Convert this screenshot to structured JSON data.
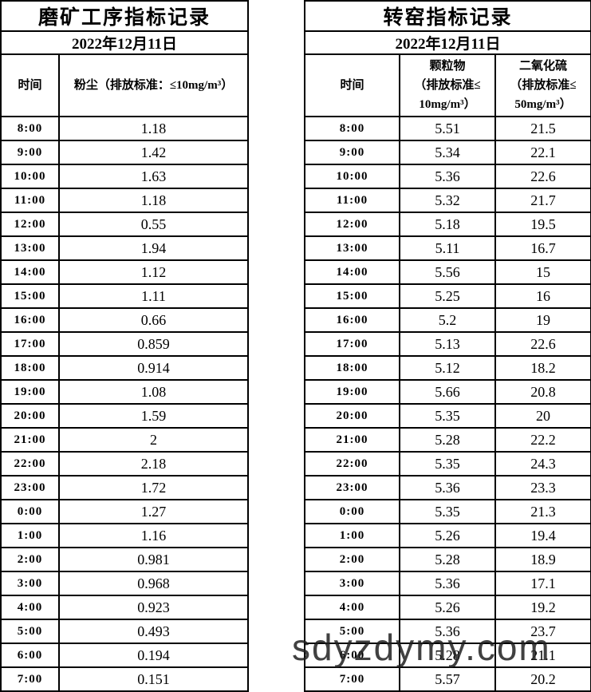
{
  "watermark": {
    "text": "sdyzdymy.com"
  },
  "grinding_table": {
    "title": "磨矿工序指标记录",
    "date": "2022年12月11日",
    "columns": {
      "time": "时间",
      "dust": "粉尘（排放标准：≤10mg/m³）"
    },
    "rows": [
      {
        "time": "8:00",
        "value": "1.18"
      },
      {
        "time": "9:00",
        "value": "1.42"
      },
      {
        "time": "10:00",
        "value": "1.63"
      },
      {
        "time": "11:00",
        "value": "1.18"
      },
      {
        "time": "12:00",
        "value": "0.55"
      },
      {
        "time": "13:00",
        "value": "1.94"
      },
      {
        "time": "14:00",
        "value": "1.12"
      },
      {
        "time": "15:00",
        "value": "1.11"
      },
      {
        "time": "16:00",
        "value": "0.66"
      },
      {
        "time": "17:00",
        "value": "0.859"
      },
      {
        "time": "18:00",
        "value": "0.914"
      },
      {
        "time": "19:00",
        "value": "1.08"
      },
      {
        "time": "20:00",
        "value": "1.59"
      },
      {
        "time": "21:00",
        "value": "2"
      },
      {
        "time": "22:00",
        "value": "2.18"
      },
      {
        "time": "23:00",
        "value": "1.72"
      },
      {
        "time": "0:00",
        "value": "1.27"
      },
      {
        "time": "1:00",
        "value": "1.16"
      },
      {
        "time": "2:00",
        "value": "0.981"
      },
      {
        "time": "3:00",
        "value": "0.968"
      },
      {
        "time": "4:00",
        "value": "0.923"
      },
      {
        "time": "5:00",
        "value": "0.493"
      },
      {
        "time": "6:00",
        "value": "0.194"
      },
      {
        "time": "7:00",
        "value": "0.151"
      }
    ]
  },
  "kiln_table": {
    "title": "转窑指标记录",
    "date": "2022年12月11日",
    "columns": {
      "time": "时间",
      "pm": "颗粒物\n（排放标准≤\n10mg/m³）",
      "so2": "二氧化硫\n（排放标准≤\n50mg/m³）"
    },
    "rows": [
      {
        "time": "8:00",
        "pm": "5.51",
        "so2": "21.5"
      },
      {
        "time": "9:00",
        "pm": "5.34",
        "so2": "22.1"
      },
      {
        "time": "10:00",
        "pm": "5.36",
        "so2": "22.6"
      },
      {
        "time": "11:00",
        "pm": "5.32",
        "so2": "21.7"
      },
      {
        "time": "12:00",
        "pm": "5.18",
        "so2": "19.5"
      },
      {
        "time": "13:00",
        "pm": "5.11",
        "so2": "16.7"
      },
      {
        "time": "14:00",
        "pm": "5.56",
        "so2": "15"
      },
      {
        "time": "15:00",
        "pm": "5.25",
        "so2": "16"
      },
      {
        "time": "16:00",
        "pm": "5.2",
        "so2": "19"
      },
      {
        "time": "17:00",
        "pm": "5.13",
        "so2": "22.6"
      },
      {
        "time": "18:00",
        "pm": "5.12",
        "so2": "18.2"
      },
      {
        "time": "19:00",
        "pm": "5.66",
        "so2": "20.8"
      },
      {
        "time": "20:00",
        "pm": "5.35",
        "so2": "20"
      },
      {
        "time": "21:00",
        "pm": "5.28",
        "so2": "22.2"
      },
      {
        "time": "22:00",
        "pm": "5.35",
        "so2": "24.3"
      },
      {
        "time": "23:00",
        "pm": "5.36",
        "so2": "23.3"
      },
      {
        "time": "0:00",
        "pm": "5.35",
        "so2": "21.3"
      },
      {
        "time": "1:00",
        "pm": "5.26",
        "so2": "19.4"
      },
      {
        "time": "2:00",
        "pm": "5.28",
        "so2": "18.9"
      },
      {
        "time": "3:00",
        "pm": "5.36",
        "so2": "17.1"
      },
      {
        "time": "4:00",
        "pm": "5.26",
        "so2": "19.2"
      },
      {
        "time": "5:00",
        "pm": "5.36",
        "so2": "23.7"
      },
      {
        "time": "6:00",
        "pm": "5.28",
        "so2": "21.1"
      },
      {
        "time": "7:00",
        "pm": "5.57",
        "so2": "20.2"
      }
    ]
  }
}
